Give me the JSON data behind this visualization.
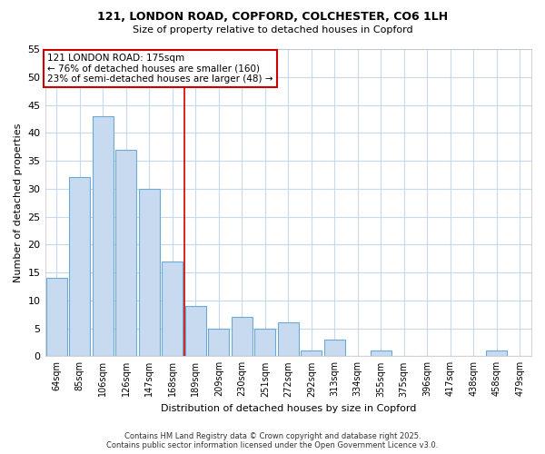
{
  "title": "121, LONDON ROAD, COPFORD, COLCHESTER, CO6 1LH",
  "subtitle": "Size of property relative to detached houses in Copford",
  "xlabel": "Distribution of detached houses by size in Copford",
  "ylabel": "Number of detached properties",
  "bar_labels": [
    "64sqm",
    "85sqm",
    "106sqm",
    "126sqm",
    "147sqm",
    "168sqm",
    "189sqm",
    "209sqm",
    "230sqm",
    "251sqm",
    "272sqm",
    "292sqm",
    "313sqm",
    "334sqm",
    "355sqm",
    "375sqm",
    "396sqm",
    "417sqm",
    "438sqm",
    "458sqm",
    "479sqm"
  ],
  "bar_values": [
    14,
    32,
    43,
    37,
    30,
    17,
    9,
    5,
    7,
    5,
    6,
    1,
    3,
    0,
    1,
    0,
    0,
    0,
    0,
    1,
    0
  ],
  "bar_color": "#c8daf0",
  "bar_edge_color": "#6aaad4",
  "vline_x": 5.5,
  "vline_color": "#cc0000",
  "annotation_text": "121 LONDON ROAD: 175sqm\n← 76% of detached houses are smaller (160)\n23% of semi-detached houses are larger (48) →",
  "annotation_box_color": "#ffffff",
  "annotation_box_edge": "#cc0000",
  "ylim": [
    0,
    55
  ],
  "yticks": [
    0,
    5,
    10,
    15,
    20,
    25,
    30,
    35,
    40,
    45,
    50,
    55
  ],
  "bg_color": "#ffffff",
  "plot_bg_color": "#ffffff",
  "grid_color": "#c8d8ee",
  "footer_line1": "Contains HM Land Registry data © Crown copyright and database right 2025.",
  "footer_line2": "Contains public sector information licensed under the Open Government Licence v3.0."
}
